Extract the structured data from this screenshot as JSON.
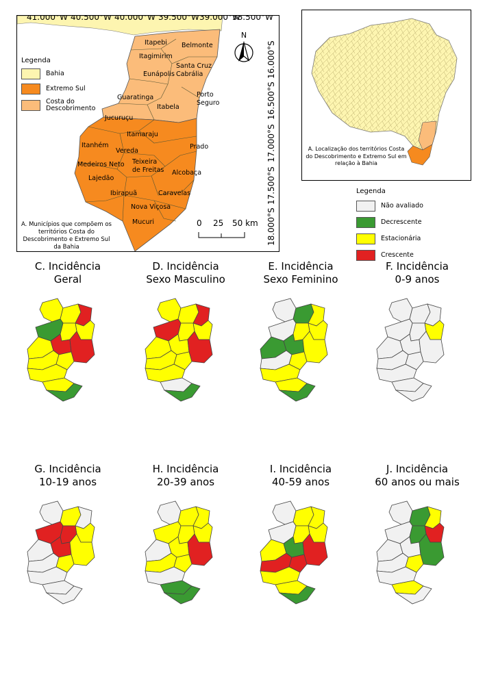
{
  "colors": {
    "bahia": "#fdf5b0",
    "extremo_sul": "#f68a1f",
    "costa_descobrimento": "#fbbc7a",
    "nao_avaliado": "#f1f1f1",
    "decrescente": "#3a9a32",
    "estacionaria": "#ffff00",
    "crescente": "#e12121"
  },
  "panel_a": {
    "longitudes": [
      "41.000°W",
      "40.500°W",
      "40.000°W",
      "39.500°W",
      "39.000°W",
      "38.500°W"
    ],
    "latitudes": [
      "16.000°S",
      "16.500°S",
      "17.000°S",
      "17.500°S",
      "18.000°S"
    ],
    "north_label": "N",
    "legend": {
      "title": "Legenda",
      "items": [
        "Bahia",
        "Extremo Sul",
        "Costa do Descobrimento"
      ]
    },
    "municipalities": [
      "Itapebi",
      "Belmonte",
      "Itagimirim",
      "Santa Cruz Cabrália",
      "Eunápolis",
      "Guaratinga",
      "Porto Seguro",
      "Itabela",
      "Jucuruçu",
      "Itamaraju",
      "Prado",
      "Itanhém",
      "Vereda",
      "Medeiros Neto",
      "Teixeira de Freitas",
      "Alcobaça",
      "Lajedão",
      "Ibirapuã",
      "Caravelas",
      "Nova Viçosa",
      "Mucuri"
    ],
    "caption_prefix": "A.",
    "caption": "Municípios que compõem os territórios Costa do Descobrimento e Extremo Sul da Bahia",
    "scale": {
      "zero": "0",
      "mid": "25",
      "end": "50 km"
    }
  },
  "panel_b": {
    "caption_prefix": "A.",
    "caption": "Localização dos territórios Costa do Descobrimento e Extremo Sul em relação à Bahia"
  },
  "trend_legend": {
    "title": "Legenda",
    "items": [
      "Não avaliado",
      "Decrescente",
      "Estacionária",
      "Crescente"
    ]
  },
  "maps": [
    {
      "title_line1": "C. Incidência",
      "title_line2": "Geral"
    },
    {
      "title_line1": "D. Incidência",
      "title_line2": "Sexo Masculino"
    },
    {
      "title_line1": "E. Incidência",
      "title_line2": "Sexo Feminino"
    },
    {
      "title_line1": "F. Incidência",
      "title_line2": "0-9 anos"
    },
    {
      "title_line1": "G. Incidência",
      "title_line2": "10-19 anos"
    },
    {
      "title_line1": "H. Incidência",
      "title_line2": "20-39 anos"
    },
    {
      "title_line1": "I. Incidência",
      "title_line2": "40-59 anos"
    },
    {
      "title_line1": "J. Incidência",
      "title_line2": "60 anos ou mais"
    }
  ]
}
